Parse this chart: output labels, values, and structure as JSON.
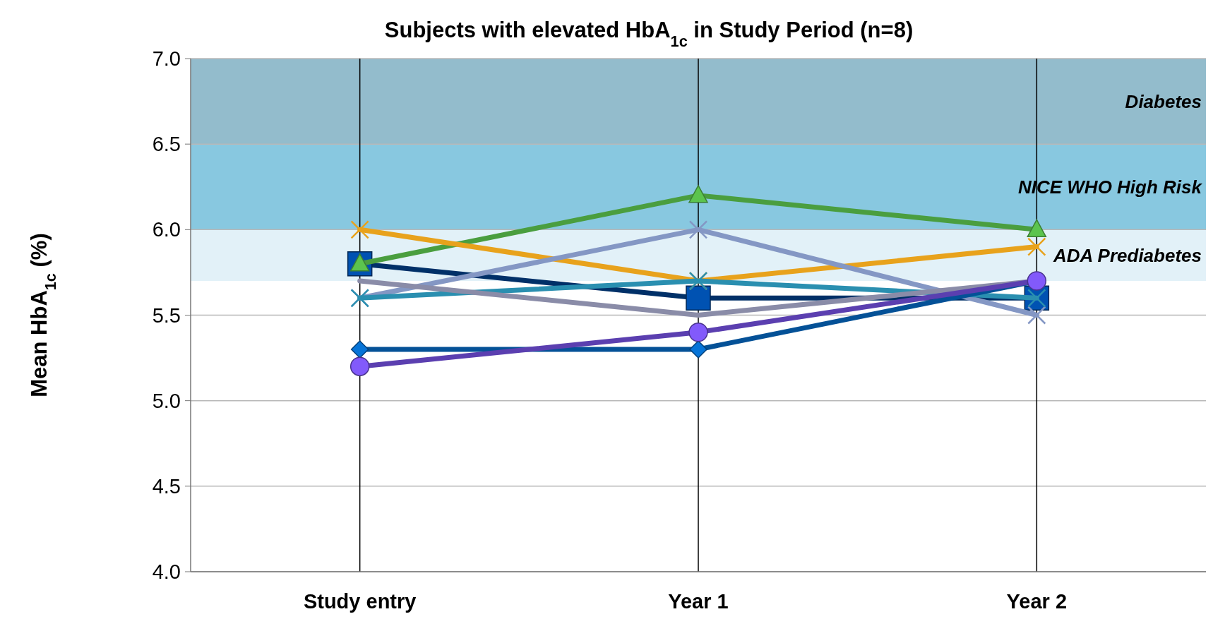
{
  "chart_data": {
    "type": "line",
    "title": "Subjects with elevated HbA$_{1c}$ in Study Period (n=8)",
    "ylabel": "Mean HbA$_{1c}$  (%)",
    "categories": [
      "Study entry",
      "Year 1",
      "Year 2"
    ],
    "ylim": [
      4.0,
      7.0
    ],
    "yticks": [
      {
        "value": 4,
        "label": "4.0"
      },
      {
        "value": 4.5,
        "label": "4.5"
      },
      {
        "value": 5,
        "label": "5.0"
      },
      {
        "value": 5.5,
        "label": "5.5"
      },
      {
        "value": 6,
        "label": "6.0"
      },
      {
        "value": 6.5,
        "label": "6.5"
      },
      {
        "value": 7,
        "label": "7.0"
      }
    ],
    "grid": true,
    "bands": [
      {
        "axis": "y",
        "from": 6.5,
        "to": 7.0,
        "label": "Diabetes",
        "color": "#93bccc"
      },
      {
        "axis": "y",
        "from": 6.0,
        "to": 6.5,
        "label": "NICE WHO High Risk",
        "color": "#88c8e0"
      },
      {
        "axis": "y",
        "from": 5.7,
        "to": 6.0,
        "label": "ADA Prediabetes",
        "color": "#e2f1f8"
      }
    ],
    "series": [
      {
        "color": "#003068",
        "marker": "square",
        "values": [
          5.8,
          5.6,
          5.6
        ]
      },
      {
        "color": "#4a9e3f",
        "marker": "triangle",
        "values": [
          5.8,
          6.2,
          6.0
        ]
      },
      {
        "color": "#e8a21c",
        "marker": "cross",
        "values": [
          6.0,
          5.7,
          5.9
        ]
      },
      {
        "color": "#8497c4",
        "marker": "cross",
        "values": [
          5.6,
          6.0,
          5.5
        ]
      },
      {
        "color": "#2a8fb0",
        "marker": "cross",
        "values": [
          5.6,
          5.7,
          5.6
        ]
      },
      {
        "color": "#8a8ca8",
        "marker": "none",
        "values": [
          5.7,
          5.5,
          5.7
        ]
      },
      {
        "color": "#045197",
        "marker": "diamond",
        "values": [
          5.3,
          5.3,
          5.7
        ]
      },
      {
        "color": "#5b3fb0",
        "marker": "circle",
        "values": [
          5.2,
          5.4,
          5.7
        ]
      }
    ]
  }
}
